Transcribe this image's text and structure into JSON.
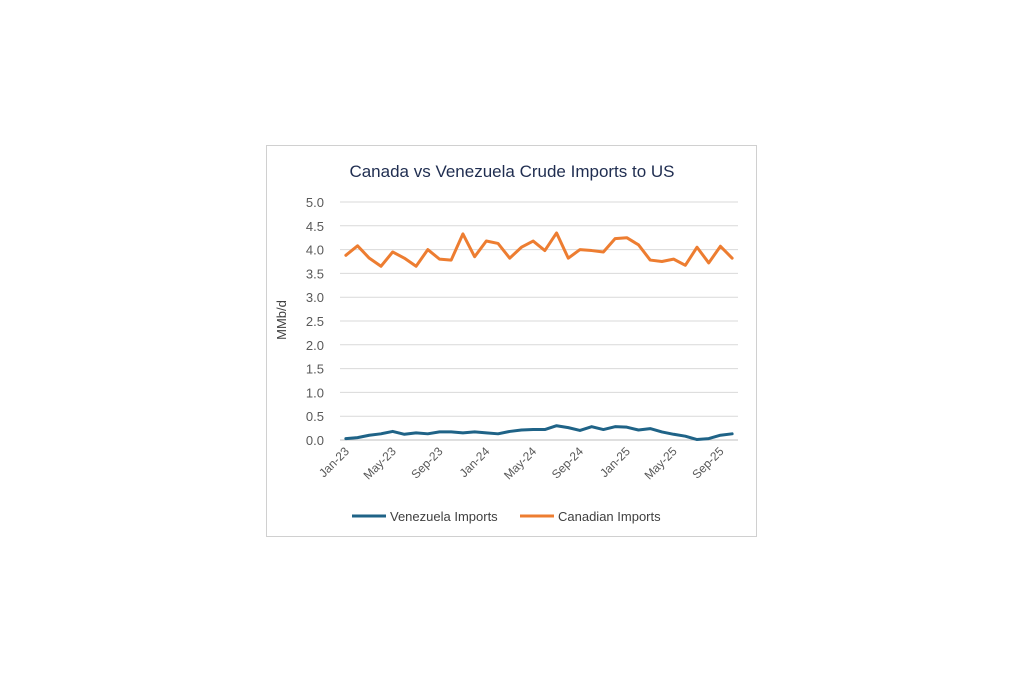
{
  "chart_data": {
    "type": "line",
    "title": "Canada vs Venezuela Crude Imports to US",
    "y_label": "MMb/d",
    "categories": [
      "Jan-23",
      null,
      null,
      null,
      "May-23",
      null,
      null,
      null,
      "Sep-23",
      null,
      null,
      null,
      "Jan-24",
      null,
      null,
      null,
      "May-24",
      null,
      null,
      null,
      "Sep-24",
      null,
      null,
      null,
      "Jan-25",
      null,
      null,
      null,
      "May-25",
      null,
      null,
      null,
      "Sep-25",
      null
    ],
    "series": [
      {
        "name": "Venezuela Imports",
        "color": "#1f6387",
        "values": [
          0.03,
          0.05,
          0.1,
          0.13,
          0.18,
          0.12,
          0.15,
          0.13,
          0.17,
          0.17,
          0.15,
          0.17,
          0.15,
          0.13,
          0.18,
          0.21,
          0.22,
          0.22,
          0.3,
          0.26,
          0.2,
          0.28,
          0.22,
          0.28,
          0.27,
          0.21,
          0.24,
          0.17,
          0.12,
          0.08,
          0.01,
          0.03,
          0.1,
          0.13
        ]
      },
      {
        "name": "Canadian Imports",
        "color": "#ed7d31",
        "values": [
          3.88,
          4.08,
          3.82,
          3.65,
          3.95,
          3.82,
          3.65,
          4.0,
          3.8,
          3.78,
          4.33,
          3.85,
          4.18,
          4.13,
          3.82,
          4.05,
          4.18,
          3.98,
          4.35,
          3.82,
          4.0,
          3.98,
          3.95,
          4.23,
          4.25,
          4.1,
          3.78,
          3.75,
          3.8,
          3.67,
          4.05,
          3.72,
          4.07,
          3.82
        ]
      }
    ],
    "ylim": [
      0,
      5
    ],
    "yticks": [
      {
        "value": 0,
        "label": "0.0"
      },
      {
        "value": 0.5,
        "label": "0.5"
      },
      {
        "value": 1,
        "label": "1.0"
      },
      {
        "value": 1.5,
        "label": "1.5"
      },
      {
        "value": 2,
        "label": "2.0"
      },
      {
        "value": 2.5,
        "label": "2.5"
      },
      {
        "value": 3,
        "label": "3.0"
      },
      {
        "value": 3.5,
        "label": "3.5"
      },
      {
        "value": 4,
        "label": "4.0"
      },
      {
        "value": 4.5,
        "label": "4.5"
      },
      {
        "value": 5,
        "label": "5.0"
      }
    ],
    "grid": true,
    "legend": "bottom"
  }
}
